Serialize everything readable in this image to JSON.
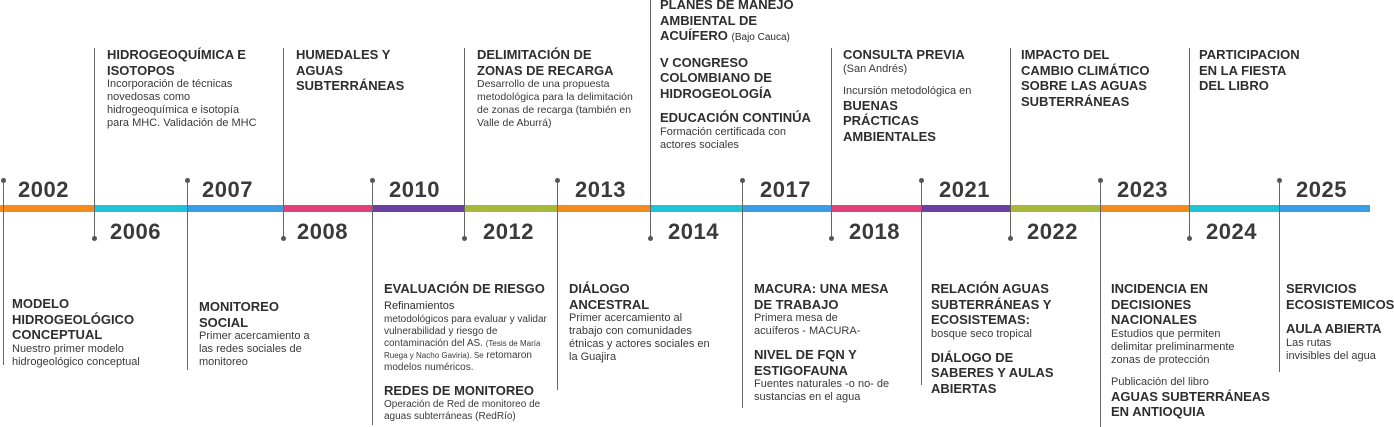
{
  "colors": {
    "orange": "#f58a1f",
    "cyan": "#1fc4d6",
    "blue": "#3a9ee6",
    "pink": "#e2407a",
    "purple": "#6b3fa0",
    "olive": "#a8b93a"
  },
  "years": [
    "2002",
    "2006",
    "2007",
    "2008",
    "2010",
    "2012",
    "2013",
    "2014",
    "2017",
    "2018",
    "2021",
    "2022",
    "2023",
    "2024",
    "2025"
  ],
  "events": {
    "e2002": {
      "heading": "MODELO HIDROGEOLÓGICO CONCEPTUAL",
      "text": "Nuestro primer modelo hidrogeológico conceptual"
    },
    "e2006": {
      "heading": "HIDROGEOQUÍMICA E ISOTOPOS",
      "text": "Incorporación de técnicas novedosas como hidrogeoquímica e isotopía para MHC. Validación de MHC"
    },
    "e2007": {
      "heading": "MONITOREO SOCIAL",
      "text": "Primer acercamiento a las redes sociales de monitoreo"
    },
    "e2008": {
      "heading": "HUMEDALES Y AGUAS SUBTERRÁNEAS"
    },
    "e2010": {
      "heading1": "EVALUACIÓN DE RIESGO",
      "inline1": "Refinamientos",
      "text1": "metodológicos para evaluar y validar vulnerabilidad y riesgo de contaminación del AS.",
      "small1": "(Tesis de María Ruega y Nacho Gaviria). Se",
      "text1b": "retomaron modelos numéricos.",
      "heading2": "REDES DE MONITOREO",
      "text2": "Operación de Red de monitoreo de aguas subterráneas (RedRío)"
    },
    "e2012": {
      "heading": "DELIMITACIÓN DE ZONAS DE RECARGA",
      "text": "Desarrollo de una propuesta metodológica para la delimitación de zonas de recarga (también en Valle de Aburrá)"
    },
    "e2013": {
      "heading": "DIÁLOGO ANCESTRAL",
      "text": "Primer acercamiento al trabajo con comunidades étnicas y actores sociales en la Guajira"
    },
    "e2014": {
      "heading1": "PLANES DE MANEJO AMBIENTAL DE ACUÍFERO",
      "inline1": "(Bajo Cauca)",
      "heading2": "V CONGRESO COLOMBIANO DE HIDROGEOLOGÍA",
      "heading3": "EDUCACIÓN CONTINÚA",
      "text3": "Formación certificada con actores sociales"
    },
    "e2017": {
      "heading1": "MACURA: UNA MESA DE TRABAJO",
      "text1": "Primera mesa de acuíferos - MACURA-",
      "heading2": "NIVEL DE FQN Y ESTIGOFAUNA",
      "text2": "Fuentes naturales -o no- de sustancias en el agua"
    },
    "e2018": {
      "heading1": "CONSULTA PREVIA",
      "text1": "(San Andrés)",
      "text2": "Incursión metodológica en",
      "heading2": "BUENAS PRÁCTICAS AMBIENTALES"
    },
    "e2021": {
      "heading1": "RELACIÓN AGUAS SUBTERRÁNEAS Y ECOSISTEMAS:",
      "text1": "bosque seco tropical",
      "heading2": "DIÁLOGO DE SABERES Y AULAS ABIERTAS"
    },
    "e2022": {
      "heading": "IMPACTO DEL CAMBIO CLIMÁTICO SOBRE LAS AGUAS SUBTERRÁNEAS"
    },
    "e2023": {
      "heading1": "INCIDENCIA EN DECISIONES NACIONALES",
      "text1": "Estudios que permiten delimitar preliminarmente zonas de protección",
      "text2": "Publicación del libro",
      "heading2": "AGUAS SUBTERRÁNEAS EN ANTIOQUIA"
    },
    "e2024": {
      "heading": "PARTICIPACION EN LA FIESTA DEL LIBRO"
    },
    "e2025": {
      "heading1": "SERVICIOS ECOSISTEMICOS",
      "heading2": "AULA ABIERTA",
      "text2": "Las rutas invisibles del agua"
    }
  }
}
